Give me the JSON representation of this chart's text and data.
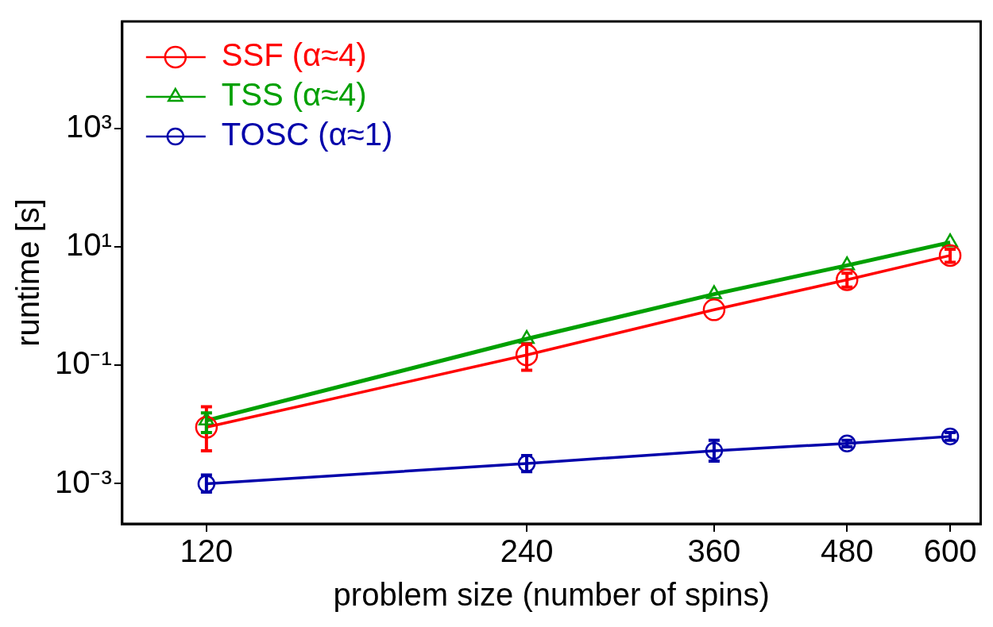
{
  "chart_data": {
    "type": "line",
    "xlabel": "problem size (number of spins)",
    "ylabel": "runtime [s]",
    "x": [
      120,
      240,
      360,
      480,
      600
    ],
    "series": [
      {
        "name": "SSF (α≈4)",
        "color": "#ff0000",
        "marker": "circle",
        "values": [
          0.009,
          0.15,
          0.87,
          2.8,
          7.2
        ],
        "errors": [
          [
            0.0036,
            0.02
          ],
          [
            0.083,
            0.23
          ],
          null,
          [
            2.1,
            3.6
          ],
          [
            5.5,
            9.2
          ]
        ]
      },
      {
        "name": "TSS (α≈4)",
        "color": "#00a000",
        "marker": "triangle",
        "values": [
          0.0117,
          0.28,
          1.6,
          4.9,
          12
        ],
        "errors": [
          [
            0.0073,
            0.0157
          ],
          null,
          null,
          null,
          null
        ]
      },
      {
        "name": "TOSC (α≈1)",
        "color": "#0000aa",
        "marker": "circle",
        "values": [
          0.001,
          0.0022,
          0.0036,
          0.0048,
          0.0063
        ],
        "errors": [
          [
            0.00072,
            0.0014
          ],
          [
            0.0016,
            0.003
          ],
          [
            0.0024,
            0.0054
          ],
          [
            0.0042,
            0.0054
          ],
          [
            0.0054,
            0.0073
          ]
        ]
      }
    ],
    "log": "xy",
    "xlim": [
      100,
      641
    ],
    "xticks": [
      120,
      240,
      360,
      480,
      600
    ],
    "ylim": [
      0.00021,
      65000
    ],
    "yticks": [
      {
        "value": 0.001,
        "label": "10⁻³"
      },
      {
        "value": 0.1,
        "label": "10⁻¹"
      },
      {
        "value": 10,
        "label": "10¹"
      },
      {
        "value": 1000,
        "label": "10³"
      }
    ],
    "grid": false,
    "legend": "top left"
  }
}
